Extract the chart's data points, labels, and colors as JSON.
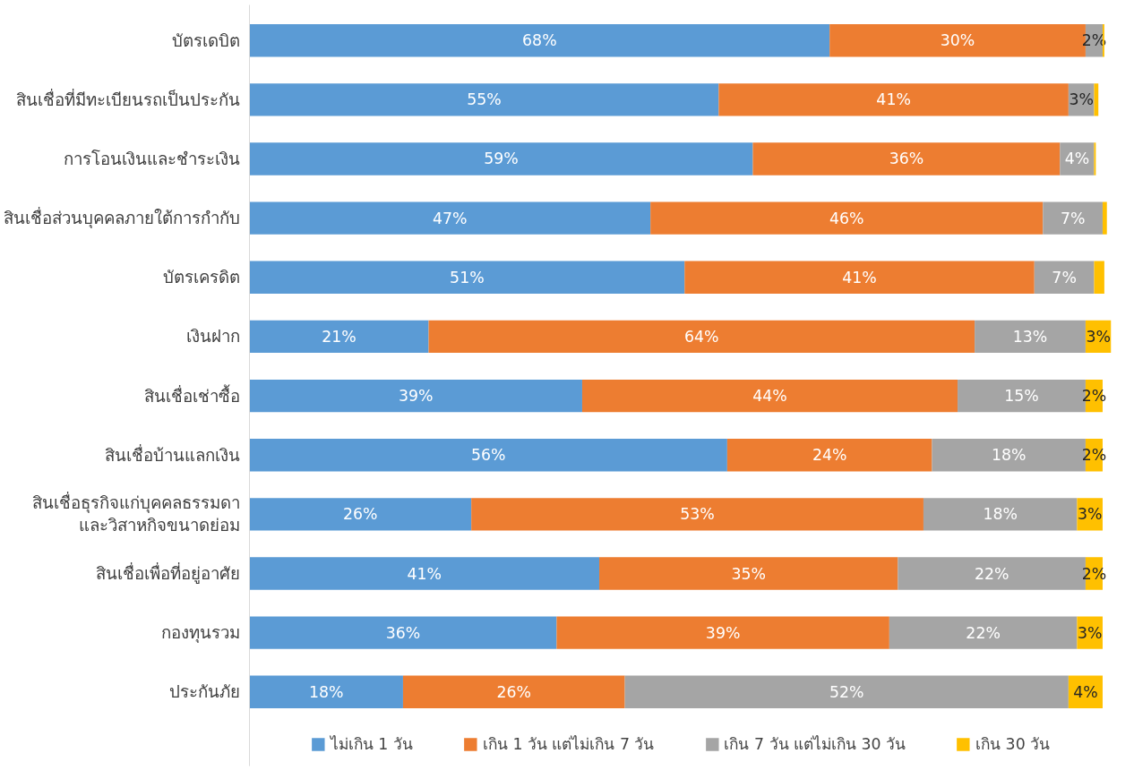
{
  "chart_data": {
    "type": "bar",
    "orientation": "horizontal",
    "stacked": true,
    "data_labels": true,
    "legend": "bottom",
    "tick_labels": "y",
    "grid": false,
    "xlim": [
      0,
      101
    ],
    "categories": [
      "บัตรเดบิต",
      "สินเชื่อที่มีทะเบียนรถเป็นประกัน",
      "การโอนเงินและชำระเงิน",
      "สินเชื่อส่วนบุคคลภายใต้การกำกับ",
      "บัตรเครดิต",
      "เงินฝาก",
      "สินเชื่อเช่าซื้อ",
      "สินเชื่อบ้านแลกเงิน",
      "สินเชื่อธุรกิจแก่บุคคลธรรมดา\nและวิสาหกิจขนาดย่อม",
      "สินเชื่อเพื่อที่อยู่อาศัย",
      "กองทุนรวม",
      "ประกันภัย"
    ],
    "series": [
      {
        "name": "ไม่เกิน 1 วัน",
        "color": "#5b9bd5",
        "values": [
          68,
          55,
          59,
          47,
          51,
          21,
          39,
          56,
          26,
          41,
          36,
          18
        ],
        "value_labels": [
          "68%",
          "55%",
          "59%",
          "47%",
          "51%",
          "21%",
          "39%",
          "56%",
          "26%",
          "41%",
          "36%",
          "18%"
        ]
      },
      {
        "name": "เกิน 1 วัน แต่ไม่เกิน 7 วัน",
        "color": "#ed7d31",
        "values": [
          30,
          41,
          36,
          46,
          41,
          64,
          44,
          24,
          53,
          35,
          39,
          26
        ],
        "value_labels": [
          "30%",
          "41%",
          "36%",
          "46%",
          "41%",
          "64%",
          "44%",
          "24%",
          "53%",
          "35%",
          "39%",
          "26%"
        ]
      },
      {
        "name": "เกิน 7 วัน แต่ไม่เกิน 30 วัน",
        "color": "#a5a5a5",
        "values": [
          2,
          3,
          4,
          7,
          7,
          13,
          15,
          18,
          18,
          22,
          22,
          52
        ],
        "value_labels": [
          "2%",
          "3%",
          "4%",
          "7%",
          "7%",
          "13%",
          "15%",
          "18%",
          "18%",
          "22%",
          "22%",
          "52%"
        ]
      },
      {
        "name": "เกิน 30 วัน",
        "color": "#ffc000",
        "values": [
          0.2,
          0.5,
          0.2,
          0.5,
          1.2,
          3,
          2,
          2,
          3,
          2,
          3,
          4
        ],
        "value_labels": [
          null,
          null,
          null,
          null,
          null,
          "3%",
          "2%",
          "2%",
          "3%",
          "2%",
          "3%",
          "4%"
        ]
      }
    ]
  }
}
